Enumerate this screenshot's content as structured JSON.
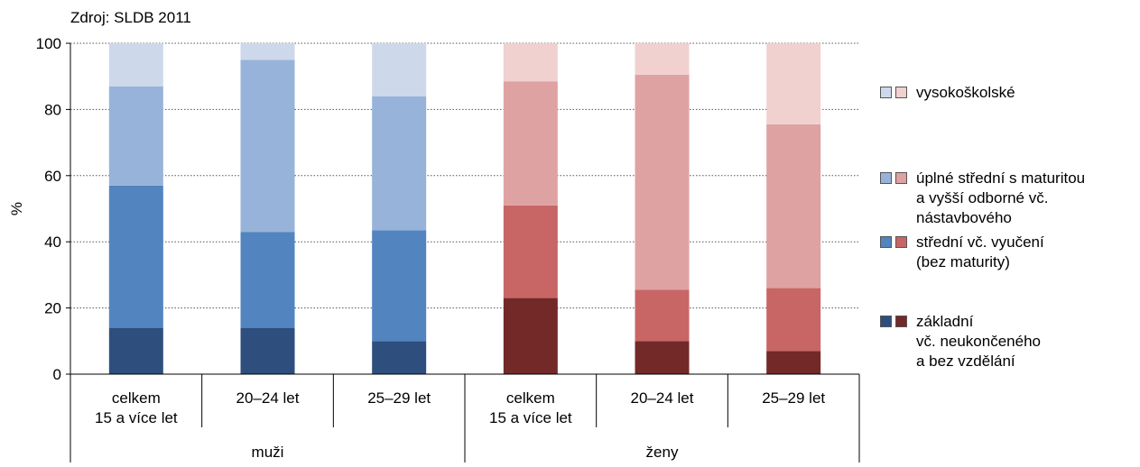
{
  "chart_data": {
    "type": "bar",
    "stacked": true,
    "source_note": "Zdroj: SLDB 2011",
    "ylabel": "%",
    "ylim": [
      0,
      100
    ],
    "yticks": [
      0,
      20,
      40,
      60,
      80,
      100
    ],
    "grid": "horizontal dotted",
    "groups": [
      {
        "label": "muži",
        "categories": [
          [
            "celkem",
            "15 a více let"
          ],
          [
            "20–24 let"
          ],
          [
            "25–29 let"
          ]
        ]
      },
      {
        "label": "ženy",
        "categories": [
          [
            "celkem",
            "15 a více let"
          ],
          [
            "20–24 let"
          ],
          [
            "25–29 let"
          ]
        ]
      }
    ],
    "series": [
      {
        "name": "základní vč. neukončeného a bez vzdělání",
        "colors": [
          "#2e4f7e",
          "#722928"
        ],
        "values": [
          14,
          14,
          10,
          23,
          10,
          7
        ]
      },
      {
        "name": "střední vč. vyučení (bez maturity)",
        "colors": [
          "#5284c0",
          "#c86665"
        ],
        "values": [
          43,
          29,
          33.5,
          28,
          15.5,
          19
        ]
      },
      {
        "name": "úplné střední s maturitou a vyšší odborné vč. nástavbového",
        "colors": [
          "#98b3d9",
          "#dfa2a2"
        ],
        "values": [
          30,
          52,
          40.5,
          37.5,
          65,
          49.5
        ]
      },
      {
        "name": "vysokoškolské",
        "colors": [
          "#cdd9eb",
          "#f1d0d0"
        ],
        "values": [
          13,
          5,
          16,
          11.5,
          9.5,
          24.5
        ]
      }
    ],
    "legend_placement": "right"
  },
  "legend": [
    {
      "lines": [
        "vysokoškolské"
      ],
      "colors": [
        "#cdd9eb",
        "#f1d0d0"
      ]
    },
    {
      "lines": [
        "úplné střední s maturitou",
        "a vyšší odborné vč.",
        "nástavbového"
      ],
      "colors": [
        "#98b3d9",
        "#dfa2a2"
      ]
    },
    {
      "lines": [
        "střední vč. vyučení",
        "(bez maturity)"
      ],
      "colors": [
        "#5284c0",
        "#c86665"
      ]
    },
    {
      "lines": [
        "základní",
        "vč. neukončeného",
        "a bez vzdělání"
      ],
      "colors": [
        "#2e4f7e",
        "#722928"
      ]
    }
  ]
}
